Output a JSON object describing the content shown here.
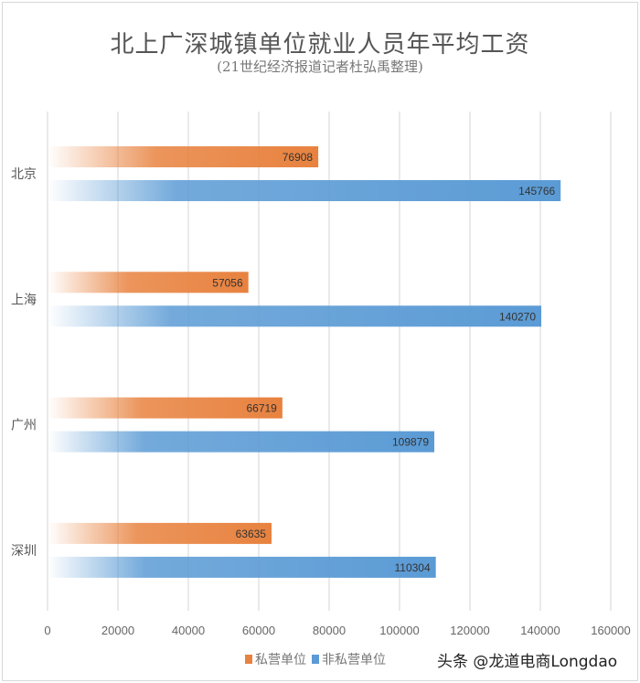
{
  "chart_data": {
    "type": "bar",
    "orientation": "horizontal",
    "title": "北上广深城镇单位就业人员年平均工资",
    "subtitle": "(21世纪经济报道记者杜弘禹整理)",
    "categories": [
      "北京",
      "上海",
      "广州",
      "深圳"
    ],
    "series": [
      {
        "name": "私营单位",
        "color": "#e8823f",
        "values": [
          76908,
          57056,
          66719,
          63635
        ]
      },
      {
        "name": "非私营单位",
        "color": "#5b9bd5",
        "values": [
          145766,
          140270,
          109879,
          110304
        ]
      }
    ],
    "xlim": [
      0,
      160000
    ],
    "xticks": [
      "0",
      "20000",
      "40000",
      "60000",
      "80000",
      "100000",
      "120000",
      "140000",
      "160000"
    ],
    "grid": true,
    "data_labels": true,
    "legend": "bottom"
  },
  "credit": "头条 @龙道电商Longdao"
}
